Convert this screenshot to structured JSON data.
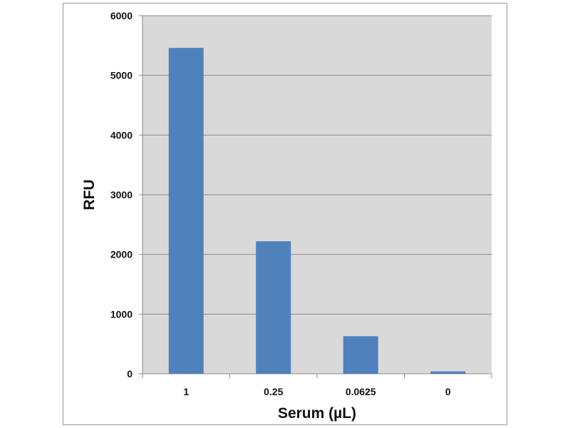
{
  "chart_data": {
    "type": "bar",
    "title": "",
    "xlabel": "Serum (µL)",
    "ylabel": "RFU",
    "categories": [
      "1",
      "0.25",
      "0.0625",
      "0"
    ],
    "values": [
      5460,
      2220,
      630,
      40
    ],
    "ylim": [
      0,
      6000
    ],
    "yticks": [
      0,
      1000,
      2000,
      3000,
      4000,
      5000,
      6000
    ],
    "grid": true,
    "legend": "none",
    "colors": {
      "bar": "#4f81bd",
      "plot_background": "#d9d9d9",
      "gridline": "#8c8c8c"
    }
  }
}
